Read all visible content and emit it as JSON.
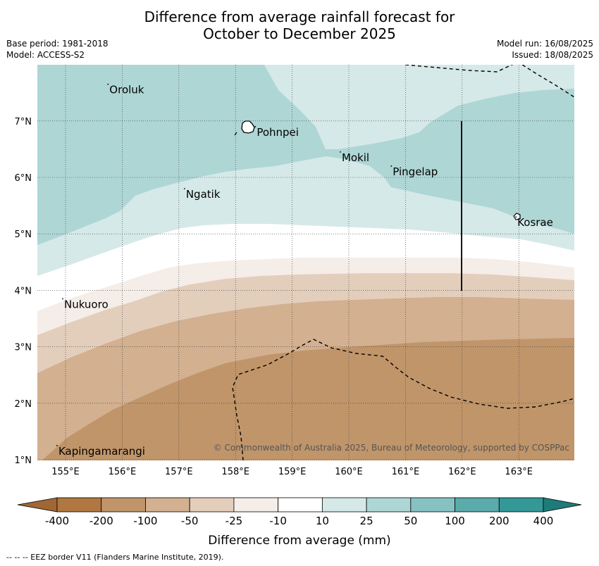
{
  "title_line1": "Difference from average rainfall forecast for",
  "title_line2": "October to December 2025",
  "meta": {
    "base_period": "Base period: 1981-2018",
    "model": "Model: ACCESS-S2",
    "model_run": "Model run: 16/08/2025",
    "issued": "Issued: 18/08/2025"
  },
  "map": {
    "lon_ticks": [
      "155°E",
      "156°E",
      "157°E",
      "158°E",
      "159°E",
      "160°E",
      "161°E",
      "162°E",
      "163°E"
    ],
    "lat_ticks": [
      "1°N",
      "2°N",
      "3°N",
      "4°N",
      "5°N",
      "6°N",
      "7°N"
    ],
    "places": [
      {
        "name": "Oroluk",
        "lon": 155.75,
        "lat": 7.65
      },
      {
        "name": "Pohnpei",
        "lon": 158.35,
        "lat": 6.9
      },
      {
        "name": "Mokil",
        "lon": 159.85,
        "lat": 6.45
      },
      {
        "name": "Pingelap",
        "lon": 160.75,
        "lat": 6.2
      },
      {
        "name": "Ngatik",
        "lon": 157.1,
        "lat": 5.8
      },
      {
        "name": "Kosrae",
        "lon": 162.95,
        "lat": 5.3
      },
      {
        "name": "Nukuoro",
        "lon": 154.95,
        "lat": 3.85
      },
      {
        "name": "Kapingamarangi",
        "lon": 154.85,
        "lat": 1.25
      }
    ],
    "copyright": "© Commonwealth of Australia 2025, Bureau of Meteorology, supported by COSPPac"
  },
  "colorbar": {
    "labels": [
      "-400",
      "-200",
      "-100",
      "-50",
      "-25",
      "-10",
      "10",
      "25",
      "50",
      "100",
      "200",
      "400"
    ],
    "colors": [
      "#b07840",
      "#c0956a",
      "#d2b090",
      "#e3cebc",
      "#f5ede7",
      "#ffffff",
      "#d5e9e8",
      "#aed6d5",
      "#86c2c1",
      "#5aabaa",
      "#349896"
    ],
    "under_color": "#9f6734",
    "over_color": "#1f7b79",
    "label": "Difference from average (mm)"
  },
  "footnote": "--  --  -- EEZ border V11 (Flanders Marine Institute, 2019)."
}
